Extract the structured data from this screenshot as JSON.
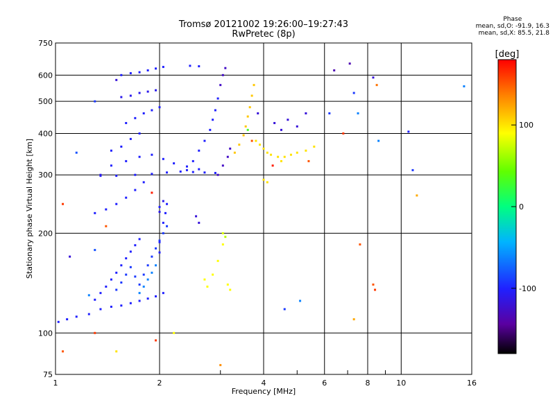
{
  "header": {
    "title_line1": "Tromsø 20121002 19:26:00–19:27:43",
    "title_line2": "RwPretec (8p)"
  },
  "phase_info": {
    "heading": "Phase",
    "line_o": "mean, sd,O: -91.9, 16.3",
    "line_x": "mean, sd,X: 85.5, 21.8"
  },
  "colorbar": {
    "unit_label": "[deg]",
    "ticks": [
      "100",
      "0",
      "-100"
    ],
    "tick_values": [
      100,
      0,
      -100
    ],
    "range": [
      -180,
      180
    ]
  },
  "chart_data": {
    "type": "scatter",
    "xlabel": "Frequency [MHz]",
    "ylabel": "Stationary phase Virtual Height [km]",
    "x_scale": "log",
    "y_scale": "log",
    "xlim": [
      1,
      16
    ],
    "ylim": [
      75,
      750
    ],
    "x_ticks": [
      1,
      2,
      4,
      6,
      8,
      10,
      16
    ],
    "x_tick_labels": [
      "1",
      "2",
      "4",
      "6",
      "8",
      "10",
      "16"
    ],
    "y_ticks": [
      75,
      100,
      200,
      300,
      400,
      500,
      600,
      750
    ],
    "y_tick_labels": [
      "75",
      "100",
      "200",
      "300",
      "400",
      "500",
      "600",
      "750"
    ],
    "grid": true,
    "color_by": "phase_deg",
    "series": [
      {
        "points": [
          [
            1.02,
            108,
            -100
          ],
          [
            1.08,
            110,
            -100
          ],
          [
            1.15,
            112,
            -100
          ],
          [
            1.25,
            114,
            -100
          ],
          [
            1.35,
            118,
            -100
          ],
          [
            1.45,
            120,
            -100
          ],
          [
            1.55,
            121,
            -100
          ],
          [
            1.65,
            123,
            -100
          ],
          [
            1.75,
            125,
            -100
          ],
          [
            1.85,
            127,
            -100
          ],
          [
            1.95,
            129,
            -100
          ],
          [
            2.05,
            132,
            -100
          ],
          [
            1.3,
            126,
            -100
          ],
          [
            1.35,
            132,
            -100
          ],
          [
            1.4,
            138,
            -100
          ],
          [
            1.45,
            145,
            -100
          ],
          [
            1.5,
            152,
            -100
          ],
          [
            1.55,
            160,
            -100
          ],
          [
            1.6,
            168,
            -100
          ],
          [
            1.65,
            176,
            -100
          ],
          [
            1.7,
            184,
            -100
          ],
          [
            1.75,
            192,
            -100
          ],
          [
            1.5,
            135,
            -90
          ],
          [
            1.55,
            142,
            -90
          ],
          [
            1.6,
            150,
            -90
          ],
          [
            1.65,
            158,
            -90
          ],
          [
            1.7,
            148,
            -90
          ],
          [
            1.75,
            140,
            -90
          ],
          [
            1.8,
            150,
            -90
          ],
          [
            1.85,
            160,
            -90
          ],
          [
            1.9,
            170,
            -90
          ],
          [
            1.95,
            180,
            -90
          ],
          [
            2.0,
            190,
            -90
          ],
          [
            2.05,
            200,
            -90
          ],
          [
            2.1,
            210,
            -90
          ],
          [
            1.75,
            132,
            -60
          ],
          [
            1.8,
            138,
            -60
          ],
          [
            1.85,
            145,
            -60
          ],
          [
            1.9,
            152,
            -60
          ],
          [
            1.95,
            160,
            -60
          ],
          [
            2.0,
            175,
            -100
          ],
          [
            2.0,
            188,
            -100
          ],
          [
            2.05,
            215,
            -100
          ],
          [
            2.08,
            230,
            -100
          ],
          [
            2.1,
            245,
            -100
          ],
          [
            1.3,
            230,
            -100
          ],
          [
            1.4,
            236,
            -100
          ],
          [
            1.5,
            245,
            -100
          ],
          [
            1.6,
            256,
            -100
          ],
          [
            1.7,
            270,
            -100
          ],
          [
            1.8,
            285,
            -100
          ],
          [
            1.35,
            298,
            -100
          ],
          [
            1.5,
            298,
            -100
          ],
          [
            1.7,
            300,
            -100
          ],
          [
            1.9,
            302,
            -100
          ],
          [
            2.1,
            305,
            -100
          ],
          [
            2.3,
            307,
            -100
          ],
          [
            2.5,
            306,
            -100
          ],
          [
            2.7,
            305,
            -100
          ],
          [
            2.9,
            304,
            -100
          ],
          [
            1.45,
            320,
            -100
          ],
          [
            1.6,
            330,
            -100
          ],
          [
            1.75,
            340,
            -100
          ],
          [
            1.9,
            345,
            -100
          ],
          [
            2.05,
            335,
            -100
          ],
          [
            2.2,
            325,
            -100
          ],
          [
            2.4,
            318,
            -100
          ],
          [
            2.6,
            312,
            -100
          ],
          [
            1.45,
            355,
            -100
          ],
          [
            1.55,
            365,
            -100
          ],
          [
            1.65,
            385,
            -100
          ],
          [
            1.75,
            400,
            -100
          ],
          [
            1.6,
            430,
            -100
          ],
          [
            1.7,
            445,
            -100
          ],
          [
            1.8,
            460,
            -100
          ],
          [
            1.9,
            470,
            -100
          ],
          [
            2.0,
            480,
            -100
          ],
          [
            1.55,
            515,
            -110
          ],
          [
            1.65,
            520,
            -110
          ],
          [
            1.75,
            530,
            -110
          ],
          [
            1.85,
            535,
            -110
          ],
          [
            1.95,
            540,
            -110
          ],
          [
            1.55,
            600,
            -100
          ],
          [
            1.65,
            608,
            -100
          ],
          [
            1.75,
            612,
            -100
          ],
          [
            1.85,
            620,
            -100
          ],
          [
            1.95,
            628,
            -100
          ],
          [
            2.05,
            635,
            -100
          ],
          [
            2.45,
            640,
            -100
          ],
          [
            2.6,
            638,
            -100
          ],
          [
            2.4,
            310,
            -100
          ],
          [
            2.5,
            330,
            -100
          ],
          [
            2.6,
            355,
            -100
          ],
          [
            2.7,
            380,
            -100
          ],
          [
            2.8,
            410,
            -100
          ],
          [
            2.85,
            440,
            -100
          ],
          [
            2.9,
            470,
            -100
          ],
          [
            2.95,
            510,
            -100
          ],
          [
            3.0,
            560,
            -130
          ],
          [
            3.05,
            600,
            -130
          ],
          [
            3.1,
            630,
            -130
          ],
          [
            2.95,
            300,
            -130
          ],
          [
            3.05,
            320,
            -130
          ],
          [
            3.15,
            340,
            -130
          ],
          [
            3.2,
            360,
            -130
          ],
          [
            2.0,
            240,
            -100
          ],
          [
            2.0,
            232,
            -110
          ],
          [
            2.05,
            250,
            -110
          ],
          [
            2.55,
            225,
            -120
          ],
          [
            2.6,
            215,
            -120
          ],
          [
            2.7,
            145,
            90
          ],
          [
            2.75,
            138,
            90
          ],
          [
            2.85,
            150,
            90
          ],
          [
            2.95,
            165,
            90
          ],
          [
            3.05,
            185,
            90
          ],
          [
            3.05,
            200,
            80
          ],
          [
            3.1,
            195,
            70
          ],
          [
            3.15,
            140,
            90
          ],
          [
            3.2,
            135,
            90
          ],
          [
            3.3,
            350,
            110
          ],
          [
            3.4,
            370,
            110
          ],
          [
            3.5,
            395,
            110
          ],
          [
            3.55,
            420,
            110
          ],
          [
            3.6,
            450,
            110
          ],
          [
            3.65,
            480,
            110
          ],
          [
            3.7,
            520,
            110
          ],
          [
            3.75,
            560,
            110
          ],
          [
            3.8,
            380,
            100
          ],
          [
            3.9,
            370,
            100
          ],
          [
            4.0,
            360,
            100
          ],
          [
            4.1,
            350,
            100
          ],
          [
            4.2,
            345,
            100
          ],
          [
            4.4,
            340,
            100
          ],
          [
            4.6,
            340,
            100
          ],
          [
            4.8,
            345,
            100
          ],
          [
            5.0,
            350,
            100
          ],
          [
            5.3,
            355,
            100
          ],
          [
            5.6,
            365,
            100
          ],
          [
            4.0,
            290,
            100
          ],
          [
            4.1,
            285,
            100
          ],
          [
            4.5,
            330,
            100
          ],
          [
            4.3,
            430,
            -120
          ],
          [
            4.5,
            410,
            -120
          ],
          [
            4.7,
            440,
            -120
          ],
          [
            5.0,
            420,
            -120
          ],
          [
            5.3,
            460,
            -120
          ],
          [
            3.85,
            460,
            -120
          ],
          [
            3.6,
            410,
            30
          ],
          [
            3.7,
            380,
            150
          ],
          [
            4.25,
            320,
            170
          ],
          [
            5.4,
            330,
            150
          ],
          [
            6.2,
            460,
            -90
          ],
          [
            6.4,
            620,
            -140
          ],
          [
            6.8,
            400,
            160
          ],
          [
            7.1,
            650,
            -140
          ],
          [
            7.3,
            530,
            -90
          ],
          [
            7.5,
            460,
            -60
          ],
          [
            8.3,
            590,
            -120
          ],
          [
            8.5,
            560,
            140
          ],
          [
            8.6,
            380,
            -60
          ],
          [
            10.5,
            405,
            -100
          ],
          [
            10.8,
            310,
            -90
          ],
          [
            15.2,
            555,
            -60
          ],
          [
            11.1,
            260,
            120
          ],
          [
            7.6,
            185,
            150
          ],
          [
            7.3,
            110,
            120
          ],
          [
            8.3,
            140,
            150
          ],
          [
            8.4,
            135,
            160
          ],
          [
            4.6,
            118,
            -90
          ],
          [
            5.1,
            125,
            -60
          ],
          [
            1.1,
            170,
            -120
          ],
          [
            1.25,
            130,
            -60
          ],
          [
            1.3,
            178,
            -80
          ],
          [
            1.15,
            350,
            -80
          ],
          [
            1.3,
            500,
            -90
          ],
          [
            1.35,
            300,
            -110
          ],
          [
            1.5,
            580,
            -120
          ],
          [
            1.3,
            100,
            160
          ],
          [
            1.5,
            88,
            100
          ],
          [
            1.05,
            88,
            150
          ],
          [
            1.95,
            95,
            160
          ],
          [
            2.2,
            100,
            90
          ],
          [
            3.0,
            80,
            130
          ],
          [
            1.05,
            245,
            160
          ],
          [
            1.9,
            265,
            170
          ],
          [
            1.4,
            210,
            150
          ]
        ]
      }
    ]
  }
}
